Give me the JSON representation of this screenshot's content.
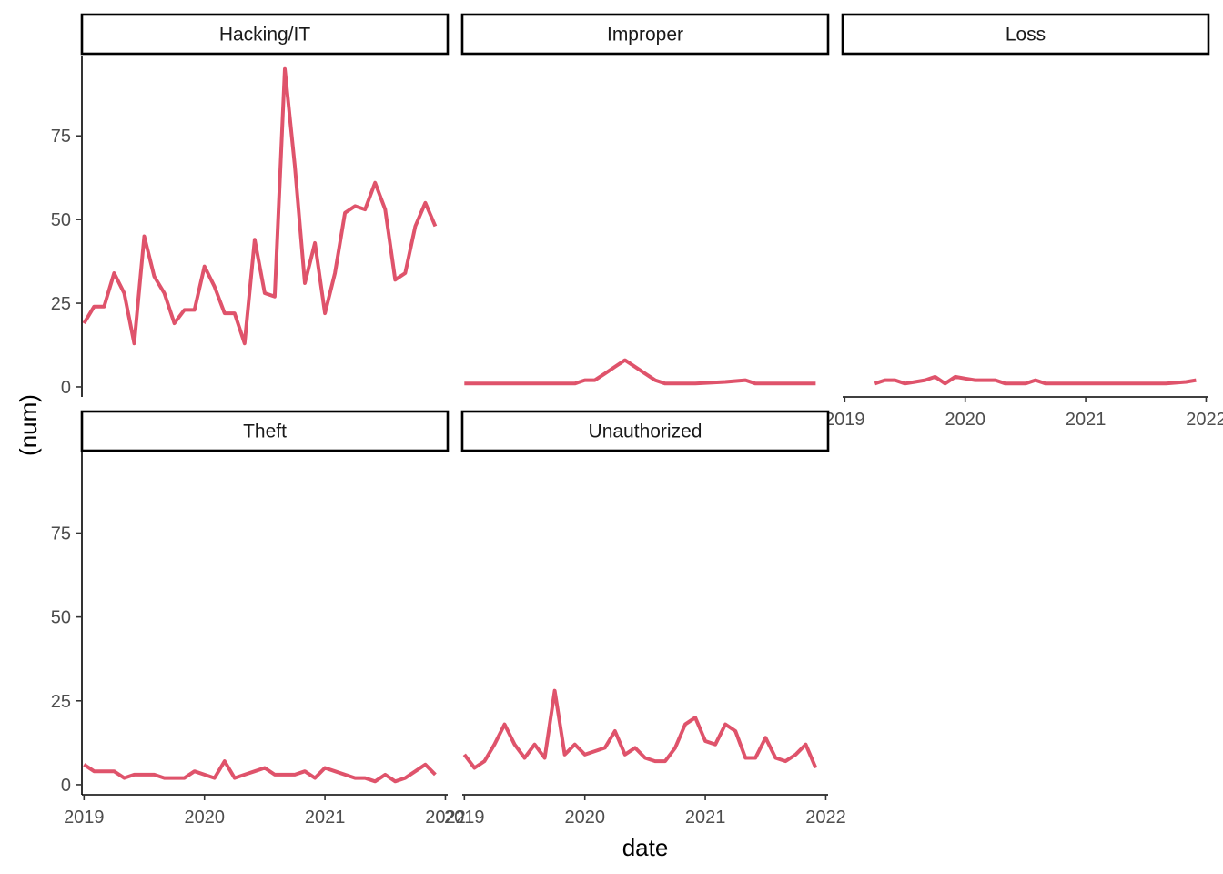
{
  "chart_data": {
    "type": "line",
    "facets": [
      "Hacking/IT",
      "Improper",
      "Loss",
      "Theft",
      "Unauthorized"
    ],
    "xlabel": "date",
    "ylabel": "(num)",
    "x_ticks": [
      "2019",
      "2020",
      "2021",
      "2022"
    ],
    "y_ticks": [
      "0",
      "25",
      "50",
      "75"
    ],
    "xlim": [
      "2018-12-25",
      "2022-01-08"
    ],
    "ylim": [
      -3,
      99
    ],
    "line_color": "#DF536B",
    "grid": false,
    "series": [
      {
        "name": "Hacking/IT",
        "x": [
          "2019-01",
          "2019-02",
          "2019-03",
          "2019-04",
          "2019-05",
          "2019-06",
          "2019-07",
          "2019-08",
          "2019-09",
          "2019-10",
          "2019-11",
          "2019-12",
          "2020-01",
          "2020-02",
          "2020-03",
          "2020-04",
          "2020-05",
          "2020-06",
          "2020-07",
          "2020-08",
          "2020-09",
          "2020-10",
          "2020-11",
          "2020-12",
          "2021-01",
          "2021-02",
          "2021-03",
          "2021-04",
          "2021-05",
          "2021-06",
          "2021-07",
          "2021-08",
          "2021-09",
          "2021-10",
          "2021-11",
          "2021-12"
        ],
        "values": [
          19,
          24,
          24,
          34,
          28,
          13,
          45,
          33,
          28,
          19,
          23,
          23,
          36,
          30,
          22,
          22,
          13,
          44,
          28,
          27,
          95,
          66,
          31,
          43,
          22,
          34,
          52,
          54,
          53,
          61,
          53,
          32,
          34,
          48,
          55,
          48
        ]
      },
      {
        "name": "Improper",
        "x": [
          "2019-01",
          "2019-03",
          "2019-06",
          "2019-09",
          "2019-12",
          "2020-01",
          "2020-02",
          "2020-03",
          "2020-04",
          "2020-05",
          "2020-06",
          "2020-07",
          "2020-08",
          "2020-09",
          "2020-12",
          "2021-03",
          "2021-05",
          "2021-06",
          "2021-09",
          "2021-12"
        ],
        "values": [
          1,
          1,
          1,
          1,
          1,
          2,
          2,
          4,
          6,
          8,
          6,
          4,
          2,
          1,
          1,
          1.5,
          2,
          1,
          1,
          1
        ]
      },
      {
        "name": "Loss",
        "x": [
          "2019-04",
          "2019-05",
          "2019-06",
          "2019-07",
          "2019-08",
          "2019-09",
          "2019-10",
          "2019-11",
          "2019-12",
          "2020-01",
          "2020-02",
          "2020-03",
          "2020-04",
          "2020-05",
          "2020-06",
          "2020-07",
          "2020-08",
          "2020-09",
          "2020-10",
          "2020-12",
          "2021-03",
          "2021-06",
          "2021-09",
          "2021-11",
          "2021-12"
        ],
        "values": [
          1,
          2,
          2,
          1,
          1.5,
          2,
          3,
          1,
          3,
          2.5,
          2,
          2,
          2,
          1,
          1,
          1,
          2,
          1,
          1,
          1,
          1,
          1,
          1,
          1.5,
          2
        ]
      },
      {
        "name": "Theft",
        "x": [
          "2019-01",
          "2019-02",
          "2019-03",
          "2019-04",
          "2019-05",
          "2019-06",
          "2019-07",
          "2019-08",
          "2019-09",
          "2019-10",
          "2019-11",
          "2019-12",
          "2020-01",
          "2020-02",
          "2020-03",
          "2020-04",
          "2020-05",
          "2020-06",
          "2020-07",
          "2020-08",
          "2020-09",
          "2020-10",
          "2020-11",
          "2020-12",
          "2021-01",
          "2021-02",
          "2021-03",
          "2021-04",
          "2021-05",
          "2021-06",
          "2021-07",
          "2021-08",
          "2021-09",
          "2021-10",
          "2021-11",
          "2021-12"
        ],
        "values": [
          6,
          4,
          4,
          4,
          2,
          3,
          3,
          3,
          2,
          2,
          2,
          4,
          3,
          2,
          7,
          2,
          3,
          4,
          5,
          3,
          3,
          3,
          4,
          2,
          5,
          4,
          3,
          2,
          2,
          1,
          3,
          1,
          2,
          4,
          6,
          3
        ]
      },
      {
        "name": "Unauthorized",
        "x": [
          "2019-01",
          "2019-02",
          "2019-03",
          "2019-04",
          "2019-05",
          "2019-06",
          "2019-07",
          "2019-08",
          "2019-09",
          "2019-10",
          "2019-11",
          "2019-12",
          "2020-01",
          "2020-02",
          "2020-03",
          "2020-04",
          "2020-05",
          "2020-06",
          "2020-07",
          "2020-08",
          "2020-09",
          "2020-10",
          "2020-11",
          "2020-12",
          "2021-01",
          "2021-02",
          "2021-03",
          "2021-04",
          "2021-05",
          "2021-06",
          "2021-07",
          "2021-08",
          "2021-09",
          "2021-10",
          "2021-11",
          "2021-12"
        ],
        "values": [
          9,
          5,
          7,
          12,
          18,
          12,
          8,
          12,
          8,
          28,
          9,
          12,
          9,
          10,
          11,
          16,
          9,
          11,
          8,
          7,
          7,
          11,
          18,
          20,
          13,
          12,
          18,
          16,
          8,
          8,
          14,
          8,
          7,
          9,
          12,
          5
        ]
      }
    ]
  }
}
